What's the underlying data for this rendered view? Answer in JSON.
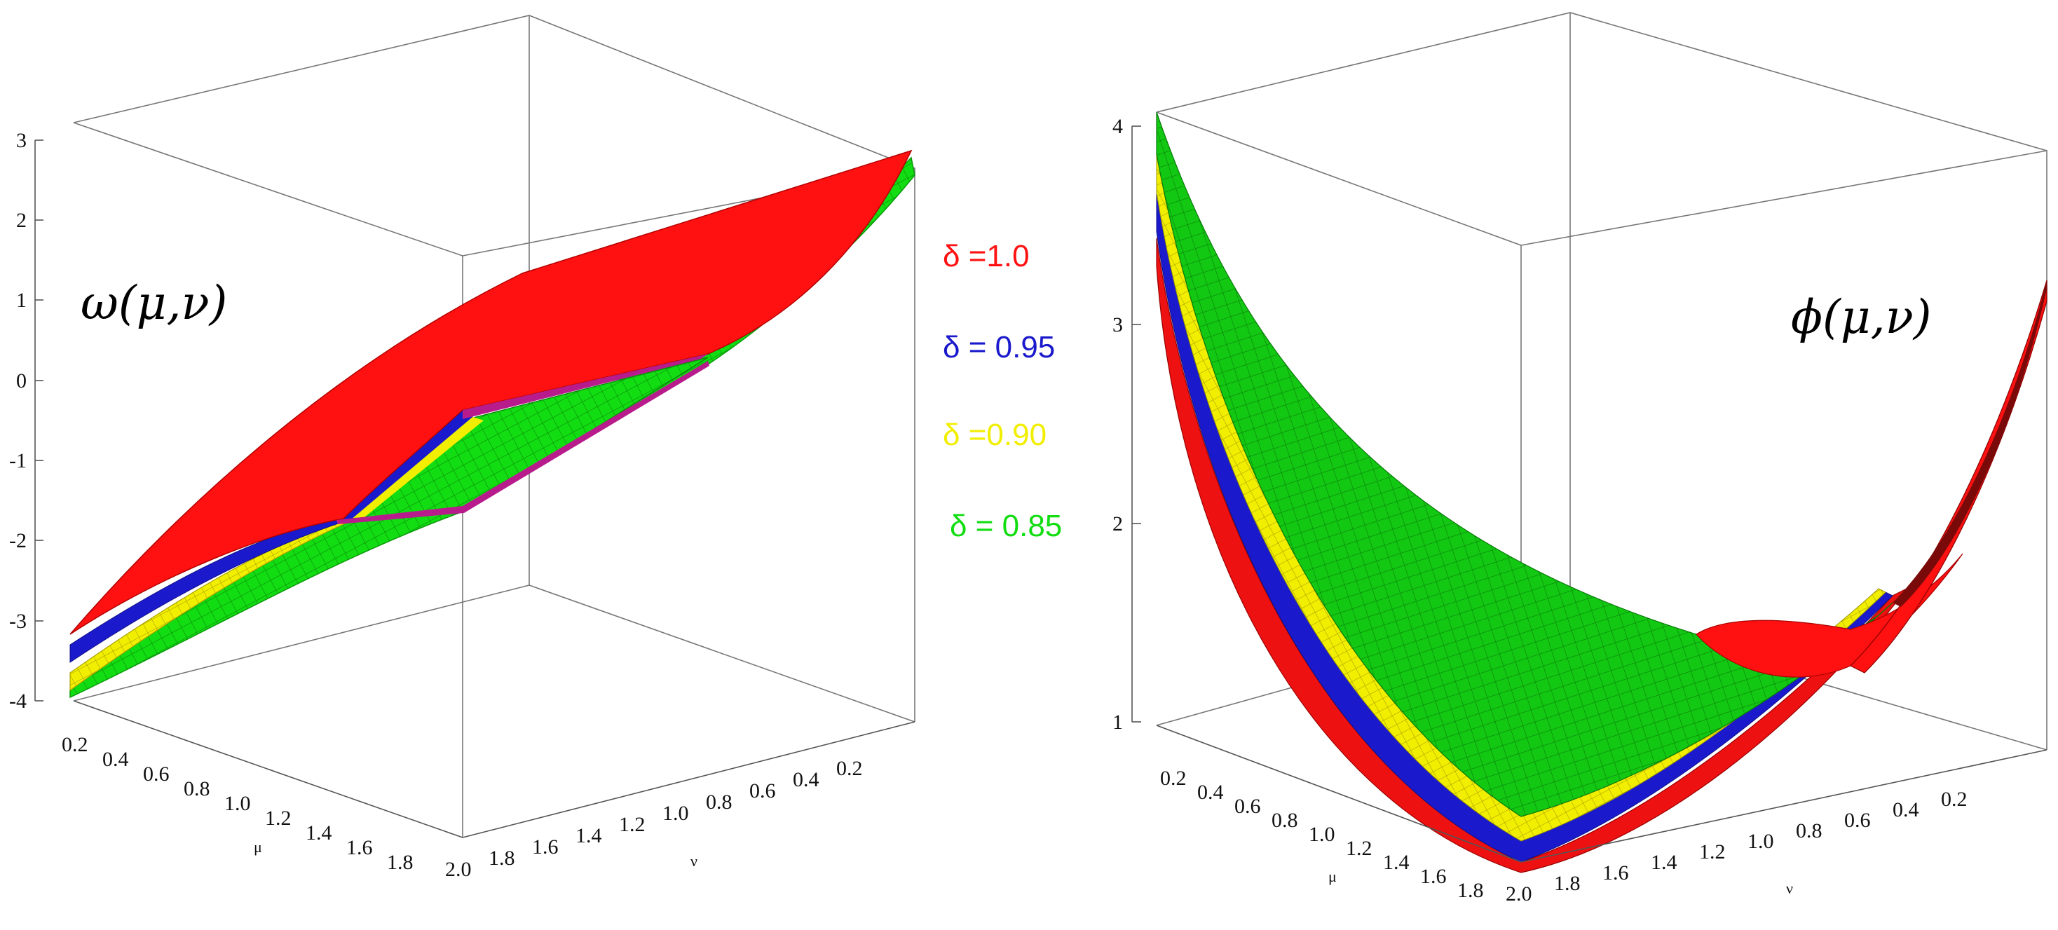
{
  "chart_data": [
    {
      "type": "surface3d",
      "title": "ω(μ,ν)",
      "x_axis_label": "μ",
      "y_axis_label": "ν",
      "x_ticks": [
        "0.2",
        "0.4",
        "0.6",
        "0.8",
        "1.0",
        "1.2",
        "1.4",
        "1.6",
        "1.8"
      ],
      "y_ticks": [
        "2.0",
        "1.8",
        "1.6",
        "1.4",
        "1.2",
        "1.0",
        "0.8",
        "0.6",
        "0.4",
        "0.2"
      ],
      "z_ticks": [
        "3",
        "2",
        "1",
        "0",
        "-1",
        "-2",
        "-3",
        "-4"
      ],
      "z_range": [
        -4,
        3
      ],
      "series": [
        {
          "name": "δ =1.0",
          "color": "#ff1111"
        },
        {
          "name": "δ = 0.95",
          "color": "#1a1acc"
        },
        {
          "name": "δ =0.90",
          "color": "#f2ee00"
        },
        {
          "name": "δ = 0.85",
          "color": "#11dd11"
        }
      ]
    },
    {
      "type": "surface3d",
      "title": "ϕ(μ,ν)",
      "x_axis_label": "μ",
      "y_axis_label": "ν",
      "x_ticks": [
        "0.2",
        "0.4",
        "0.6",
        "0.8",
        "1.0",
        "1.2",
        "1.4",
        "1.6",
        "1.8"
      ],
      "y_ticks": [
        "2.0",
        "1.8",
        "1.6",
        "1.4",
        "1.2",
        "1.0",
        "0.8",
        "0.6",
        "0.4",
        "0.2"
      ],
      "z_ticks": [
        "4",
        "3",
        "2",
        "1"
      ],
      "z_range": [
        1,
        4
      ],
      "series": [
        {
          "name": "δ =1.0",
          "color": "#ff1111"
        },
        {
          "name": "δ = 0.95",
          "color": "#1a1acc"
        },
        {
          "name": "δ =0.90",
          "color": "#f2ee00"
        },
        {
          "name": "δ = 0.85",
          "color": "#11dd11"
        }
      ]
    }
  ]
}
